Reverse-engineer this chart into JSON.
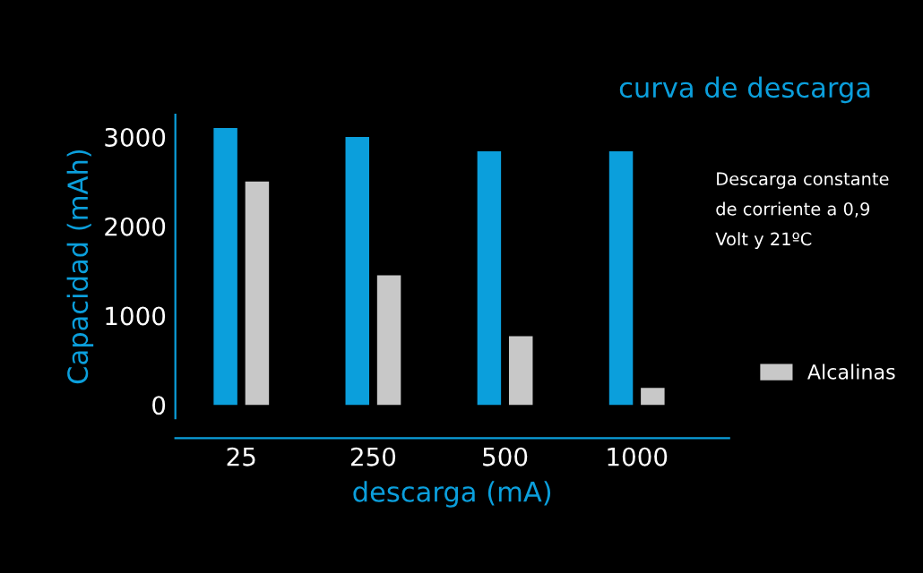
{
  "chart_data": {
    "type": "bar",
    "title": "curva de descarga",
    "xlabel": "descarga (mA)",
    "ylabel": "Capacidad (mAh)",
    "categories": [
      "25",
      "250",
      "500",
      "1000"
    ],
    "series": [
      {
        "color": "#0b9fdc",
        "values": [
          3100,
          3000,
          2840,
          2840
        ]
      },
      {
        "name": "Alcalinas",
        "color": "#c8c8c8",
        "values": [
          2500,
          1450,
          770,
          190
        ]
      }
    ],
    "ylim": [
      -150,
      3250
    ],
    "yticks": [
      0,
      1000,
      2000,
      3000
    ],
    "grid": false,
    "legend": "bottom right",
    "annotations": [
      "Descarga constante\nde corriente a 0,9\nVolt y 21ºC"
    ]
  }
}
